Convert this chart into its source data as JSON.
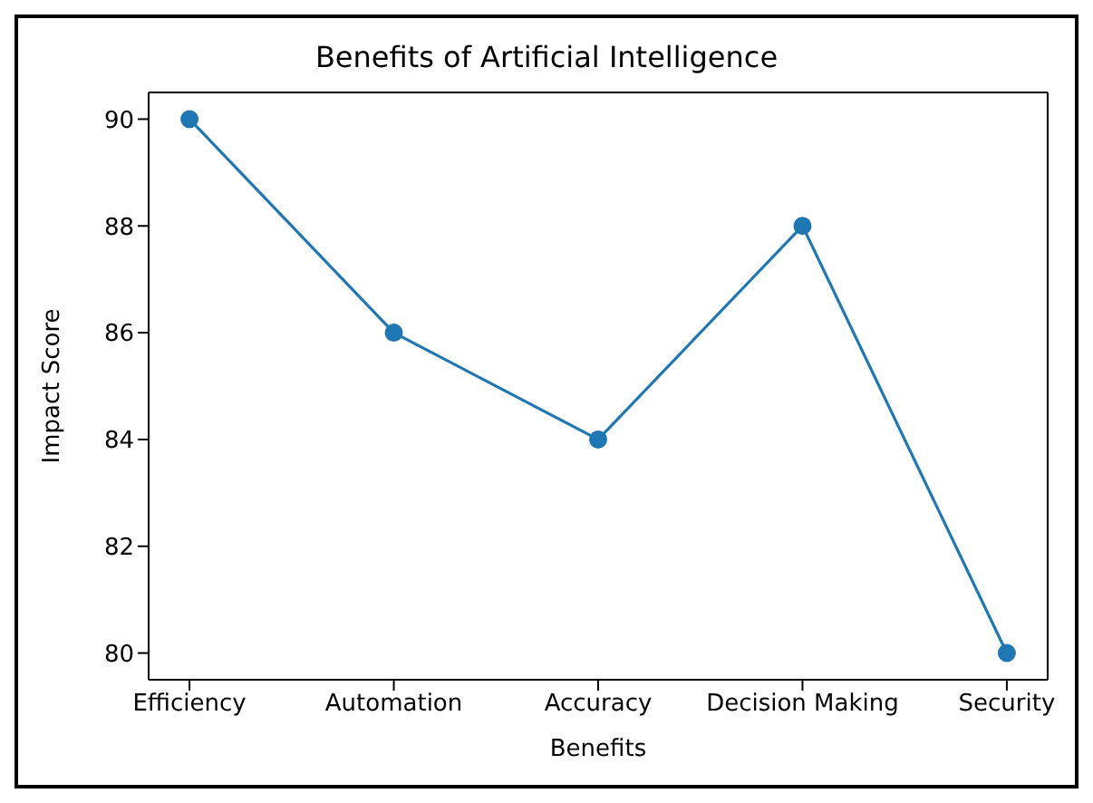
{
  "chart_data": {
    "type": "line",
    "title": "Benefits of Artificial Intelligence",
    "xlabel": "Benefits",
    "ylabel": "Impact Score",
    "categories": [
      "Efficiency",
      "Automation",
      "Accuracy",
      "Decision Making",
      "Security"
    ],
    "series": [
      {
        "color": "#1f77b4",
        "values": [
          90,
          86,
          84,
          88,
          80
        ]
      }
    ],
    "ylim": [
      79.5,
      90.5
    ],
    "yticks": [
      80,
      82,
      84,
      86,
      88,
      90
    ],
    "marker": "circle",
    "line_style": "solid",
    "grid": false,
    "legend": false
  }
}
